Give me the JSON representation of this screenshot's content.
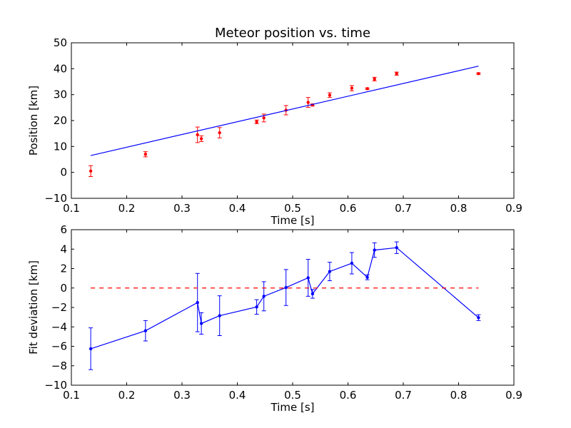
{
  "chart_data": [
    {
      "type": "scatter",
      "title": "Meteor position vs. time",
      "xlabel": "Time [s]",
      "ylabel": "Position [km]",
      "xlim": [
        0.1,
        0.9
      ],
      "ylim": [
        -10,
        50
      ],
      "x_ticks": [
        "0.1",
        "0.2",
        "0.3",
        "0.4",
        "0.5",
        "0.6",
        "0.7",
        "0.8",
        "0.9"
      ],
      "y_ticks": [
        "−10",
        "0",
        "10",
        "20",
        "30",
        "40",
        "50"
      ],
      "grid": false,
      "series": [
        {
          "kind": "errorbar",
          "color": "#ff0000",
          "x": [
            0.135,
            0.234,
            0.328,
            0.335,
            0.368,
            0.435,
            0.448,
            0.488,
            0.528,
            0.536,
            0.567,
            0.607,
            0.635,
            0.648,
            0.688,
            0.836
          ],
          "y": [
            0.5,
            7.0,
            14.5,
            13.0,
            15.3,
            19.5,
            21.0,
            24.0,
            27.0,
            26.0,
            29.8,
            32.5,
            32.3,
            36.0,
            38.1,
            38.1
          ],
          "yerr": [
            2.1,
            1.0,
            3.0,
            1.1,
            2.0,
            0.7,
            1.5,
            1.8,
            1.9,
            0.4,
            0.9,
            1.0,
            0.3,
            0.7,
            0.6,
            0.3
          ]
        },
        {
          "kind": "line",
          "color": "#0000ff",
          "x": [
            0.135,
            0.836
          ],
          "y": [
            6.5,
            41.0
          ]
        }
      ]
    },
    {
      "type": "line",
      "title": "",
      "xlabel": "Time [s]",
      "ylabel": "Fit deviation [km]",
      "xlim": [
        0.1,
        0.9
      ],
      "ylim": [
        -10,
        6
      ],
      "x_ticks": [
        "0.1",
        "0.2",
        "0.3",
        "0.4",
        "0.5",
        "0.6",
        "0.7",
        "0.8",
        "0.9"
      ],
      "y_ticks": [
        "−10",
        "−8",
        "−6",
        "−4",
        "−2",
        "0",
        "2",
        "4",
        "6"
      ],
      "grid": false,
      "series": [
        {
          "kind": "errorbar-line",
          "color": "#0000ff",
          "x": [
            0.135,
            0.234,
            0.328,
            0.335,
            0.368,
            0.435,
            0.448,
            0.488,
            0.528,
            0.536,
            0.567,
            0.607,
            0.635,
            0.648,
            0.688,
            0.836
          ],
          "y": [
            -6.25,
            -4.4,
            -1.5,
            -3.65,
            -2.85,
            -1.95,
            -0.85,
            0.05,
            1.05,
            -0.6,
            1.7,
            2.55,
            1.1,
            3.9,
            4.15,
            -3.05
          ],
          "yerr": [
            2.15,
            1.05,
            3.0,
            1.1,
            2.05,
            0.75,
            1.5,
            1.85,
            1.9,
            0.45,
            0.95,
            1.1,
            0.25,
            0.75,
            0.6,
            0.3
          ]
        },
        {
          "kind": "dashed-line",
          "color": "#ff0000",
          "x": [
            0.135,
            0.836
          ],
          "y": [
            0,
            0
          ]
        }
      ]
    }
  ]
}
